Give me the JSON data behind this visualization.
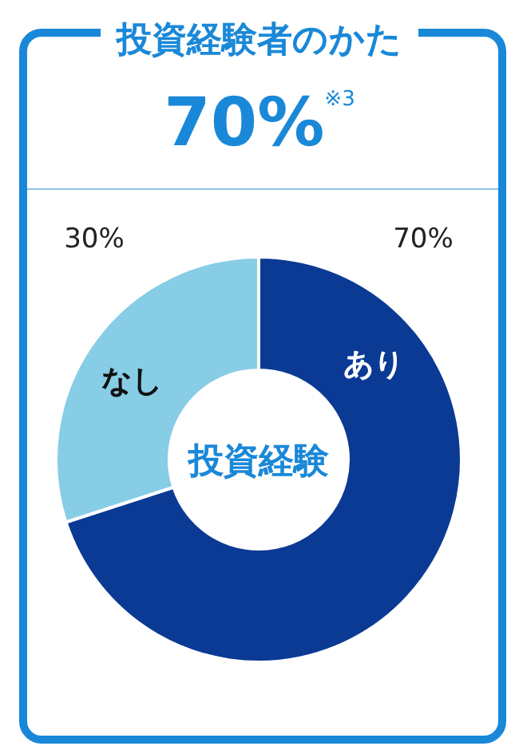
{
  "chart_data": {
    "type": "donut",
    "title": "投資経験者のかた",
    "subtitle": "70%$^{※3}$",
    "categories": [
      "あり",
      "なし"
    ],
    "values": [
      70,
      30
    ],
    "colors": [
      "#0a3a94",
      "#87cde6"
    ],
    "value_labels": [
      "70%",
      "30%"
    ],
    "annotations": [
      "投資経験"
    ]
  }
}
